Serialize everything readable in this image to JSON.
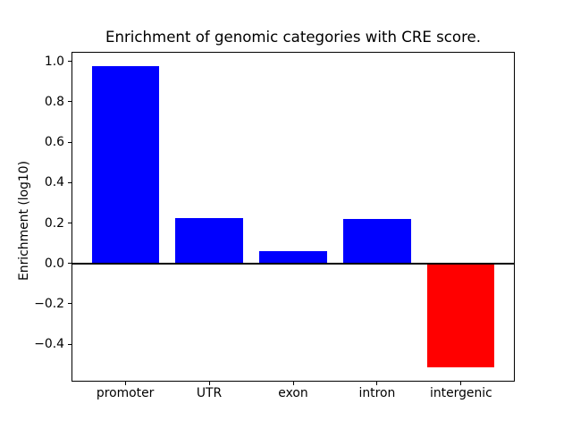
{
  "chart_data": {
    "type": "bar",
    "title": "Enrichment of genomic categories with CRE score.",
    "xlabel": "",
    "ylabel": "Enrichment (log10)",
    "categories": [
      "promoter",
      "UTR",
      "exon",
      "intron",
      "intergenic"
    ],
    "values": [
      0.975,
      0.225,
      0.06,
      0.22,
      -0.513
    ],
    "bar_colors": [
      "#0000ff",
      "#0000ff",
      "#0000ff",
      "#0000ff",
      "#ff0000"
    ],
    "bar_width": 0.8,
    "ylim": [
      -0.585,
      1.047
    ],
    "xlim": [
      -0.64,
      4.64
    ],
    "ytick_values": [
      1.0,
      0.8,
      0.6,
      0.4,
      0.2,
      0.0,
      -0.2,
      -0.4
    ],
    "ytick_labels": [
      "1.0",
      "0.8",
      "0.6",
      "0.4",
      "0.2",
      "0.0",
      "−0.2",
      "−0.4"
    ],
    "axhline_y": 0,
    "axhline_color": "#000000",
    "grid": false,
    "legend": null,
    "background_color": "#ffffff",
    "text_color": "#000000"
  }
}
